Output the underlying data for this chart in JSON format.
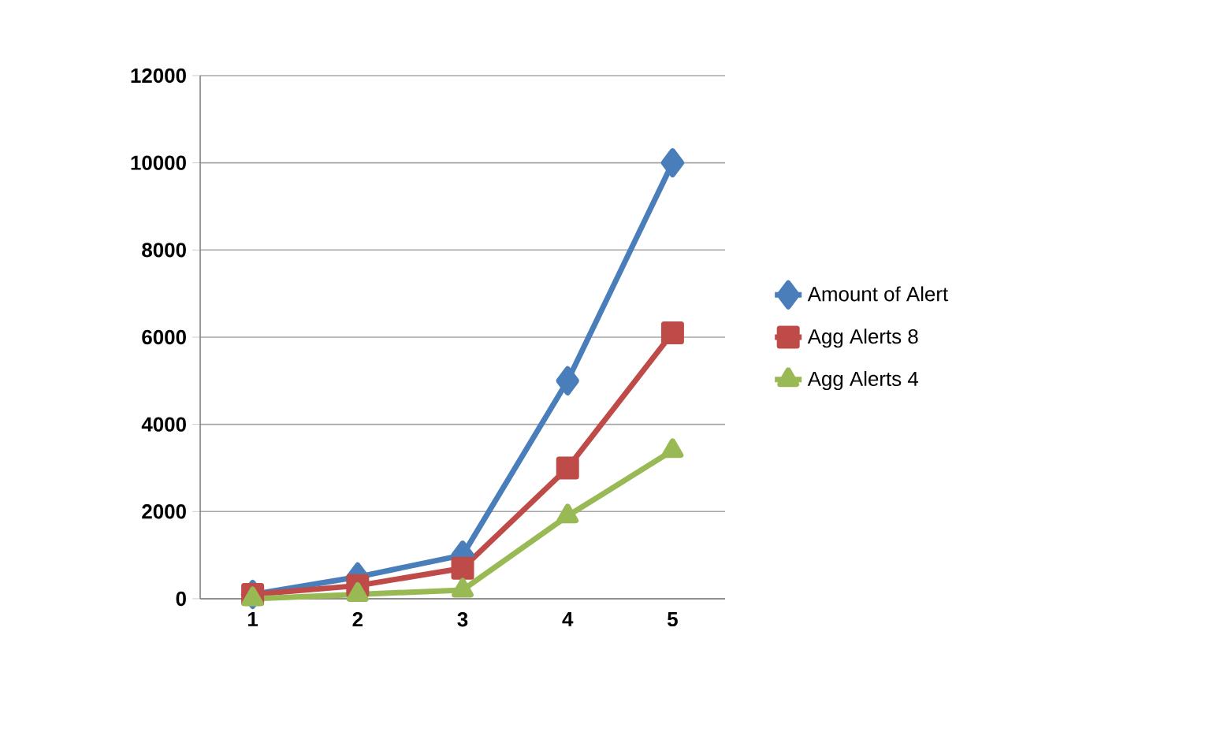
{
  "chart_data": {
    "type": "line",
    "categories": [
      "1",
      "2",
      "3",
      "4",
      "5"
    ],
    "series": [
      {
        "name": "Amount of Alert",
        "color": "#4a7ebb",
        "marker": "diamond",
        "values": [
          100,
          500,
          1000,
          5000,
          10000
        ]
      },
      {
        "name": "Agg Alerts 8",
        "color": "#be4b48",
        "marker": "square",
        "values": [
          100,
          300,
          700,
          3000,
          6100
        ]
      },
      {
        "name": "Agg Alerts 4",
        "color": "#98b954",
        "marker": "triangle",
        "values": [
          0,
          100,
          200,
          1900,
          3400
        ]
      }
    ],
    "ylim": [
      0,
      12000
    ],
    "yticks": [
      0,
      2000,
      4000,
      6000,
      8000,
      10000,
      12000
    ],
    "grid": "y",
    "legend": "right"
  }
}
